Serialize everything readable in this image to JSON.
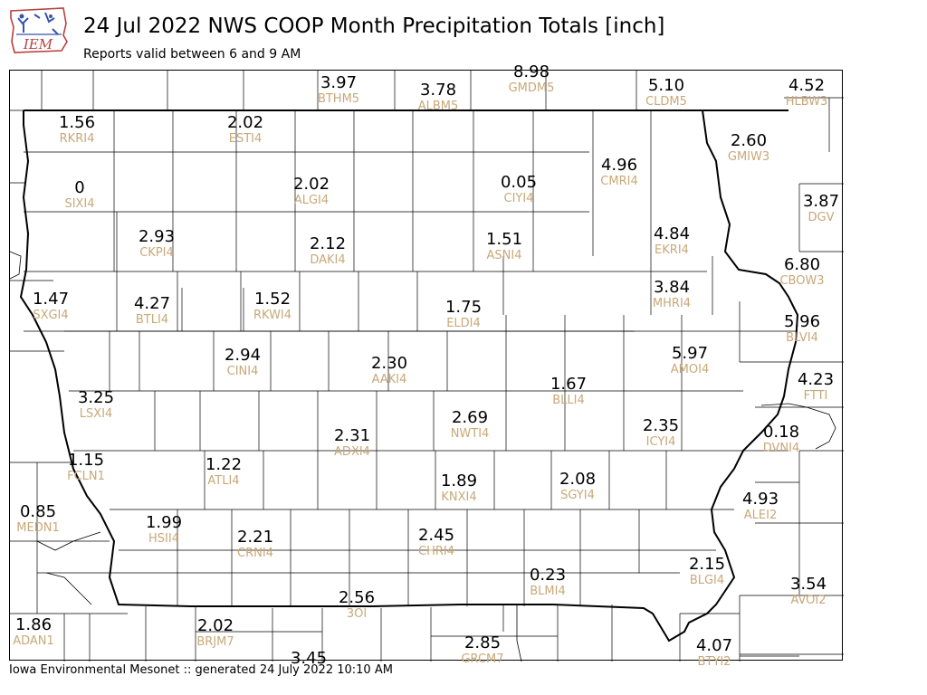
{
  "header": {
    "logo_text": "IEM",
    "title": "24 Jul 2022 NWS COOP Month Precipitation Totals [inch]",
    "subtitle": "Reports valid between 6 and 9 AM"
  },
  "footer": {
    "text": "Iowa Environmental Mesonet :: generated 24 July 2022 10:10 AM"
  },
  "colors": {
    "value_text": "#000000",
    "station_id_text": "#c8a878",
    "county_lines": "#000000",
    "state_border": "#000000"
  },
  "stations": [
    {
      "id": "BTHM5",
      "value": "3.97"
    },
    {
      "id": "ALBM5",
      "value": "3.78"
    },
    {
      "id": "GMDM5",
      "value": "8.98"
    },
    {
      "id": "CLDM5",
      "value": "5.10"
    },
    {
      "id": "HLBW3",
      "value": "4.52"
    },
    {
      "id": "RKRI4",
      "value": "1.56"
    },
    {
      "id": "ESTI4",
      "value": "2.02"
    },
    {
      "id": "GMIW3",
      "value": "2.60"
    },
    {
      "id": "SIXI4",
      "value": "0"
    },
    {
      "id": "ALGI4",
      "value": "2.02"
    },
    {
      "id": "CIYI4",
      "value": "0.05"
    },
    {
      "id": "CMRI4",
      "value": "4.96"
    },
    {
      "id": "DGV",
      "value": "3.87"
    },
    {
      "id": "CKPI4",
      "value": "2.93"
    },
    {
      "id": "DAKI4",
      "value": "2.12"
    },
    {
      "id": "ASNI4",
      "value": "1.51"
    },
    {
      "id": "EKRI4",
      "value": "4.84"
    },
    {
      "id": "CBOW3",
      "value": "6.80"
    },
    {
      "id": "SXGI4",
      "value": "1.47"
    },
    {
      "id": "BTLI4",
      "value": "4.27"
    },
    {
      "id": "RKWI4",
      "value": "1.52"
    },
    {
      "id": "ELDI4",
      "value": "1.75"
    },
    {
      "id": "MHRI4",
      "value": "3.84"
    },
    {
      "id": "BLVI4",
      "value": "5.96"
    },
    {
      "id": "CINI4",
      "value": "2.94"
    },
    {
      "id": "AAKI4",
      "value": "2.30"
    },
    {
      "id": "AMOI4",
      "value": "5.97"
    },
    {
      "id": "BLLI4",
      "value": "1.67"
    },
    {
      "id": "FTTI",
      "value": "4.23"
    },
    {
      "id": "LSXI4",
      "value": "3.25"
    },
    {
      "id": "NWTI4",
      "value": "2.69"
    },
    {
      "id": "ICYI4",
      "value": "2.35"
    },
    {
      "id": "ADXI4",
      "value": "2.31"
    },
    {
      "id": "DVNI4",
      "value": "0.18"
    },
    {
      "id": "FCLN1",
      "value": "1.15"
    },
    {
      "id": "ATLI4",
      "value": "1.22"
    },
    {
      "id": "KNXI4",
      "value": "1.89"
    },
    {
      "id": "SGYI4",
      "value": "2.08"
    },
    {
      "id": "ALEI2",
      "value": "4.93"
    },
    {
      "id": "MEDN1",
      "value": "0.85"
    },
    {
      "id": "HSII4",
      "value": "1.99"
    },
    {
      "id": "CRNI4",
      "value": "2.21"
    },
    {
      "id": "CHRI4",
      "value": "2.45"
    },
    {
      "id": "BLMI4",
      "value": "0.23"
    },
    {
      "id": "BLGI4",
      "value": "2.15"
    },
    {
      "id": "AVOI2",
      "value": "3.54"
    },
    {
      "id": "3OI",
      "value": "2.56"
    },
    {
      "id": "ADAN1",
      "value": "1.86"
    },
    {
      "id": "BRJM7",
      "value": "2.02"
    },
    {
      "id": "GRCM7",
      "value": "2.85"
    },
    {
      "id": "BTYI2",
      "value": "4.07"
    },
    {
      "id": "",
      "value": "3.45"
    }
  ]
}
